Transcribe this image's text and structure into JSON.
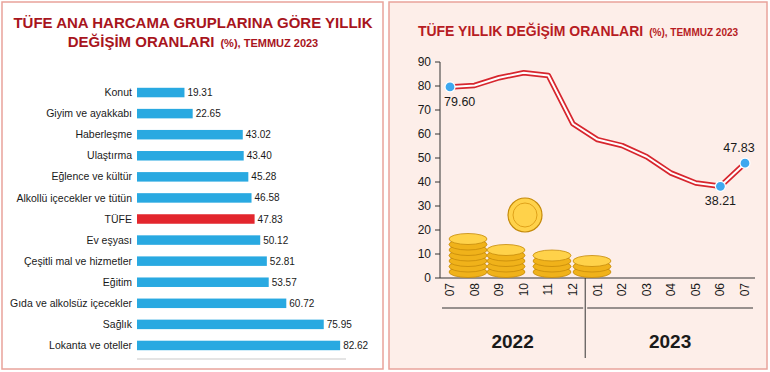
{
  "chart_data": [
    {
      "type": "bar",
      "orientation": "horizontal",
      "title": "TÜFE ANA HARCAMA GRUPLARINA GÖRE YILLIK DEĞİŞİM ORANLARI",
      "subtitle": "(%), TEMMUZ 2023",
      "categories": [
        "Konut",
        "Giyim ve ayakkabı",
        "Haberleşme",
        "Ulaştırma",
        "Eğlence ve kültür",
        "Alkollü içecekler ve tütün",
        "TÜFE",
        "Ev eşyası",
        "Çeşitli mal ve hizmetler",
        "Eğitim",
        "Gıda ve alkolsüz içecekler",
        "Sağlık",
        "Lokanta ve oteller"
      ],
      "values": [
        19.31,
        22.65,
        43.02,
        43.4,
        45.28,
        46.58,
        47.83,
        50.12,
        52.81,
        53.57,
        60.72,
        75.95,
        82.62
      ],
      "value_labels": [
        "19.31",
        "22.65",
        "43.02",
        "43.40",
        "45.28",
        "46.58",
        "47.83",
        "50.12",
        "52.81",
        "53.57",
        "60.72",
        "75.95",
        "82.62"
      ],
      "colors": [
        "#29a9e1",
        "#29a9e1",
        "#29a9e1",
        "#29a9e1",
        "#29a9e1",
        "#29a9e1",
        "#e3262d",
        "#29a9e1",
        "#29a9e1",
        "#29a9e1",
        "#29a9e1",
        "#29a9e1",
        "#29a9e1"
      ],
      "xlim": [
        0,
        85
      ],
      "data_labels": true,
      "tick_labels": "y",
      "grid": false
    },
    {
      "type": "line",
      "title": "TÜFE YILLIK DEĞİŞİM ORANLARI",
      "subtitle": "(%), TEMMUZ 2023",
      "categories": [
        "07",
        "08",
        "09",
        "10",
        "11",
        "12",
        "01",
        "02",
        "03",
        "04",
        "05",
        "06",
        "07"
      ],
      "category_groups": [
        {
          "label": "2022",
          "count": 6
        },
        {
          "label": "2023",
          "count": 7
        }
      ],
      "values": [
        79.6,
        80.21,
        83.45,
        85.51,
        84.39,
        64.27,
        57.68,
        55.18,
        50.51,
        43.68,
        39.59,
        38.21,
        47.83
      ],
      "value_labels": [
        "79.60",
        null,
        null,
        null,
        null,
        null,
        null,
        null,
        null,
        null,
        null,
        "38.21",
        "47.83"
      ],
      "color": "#d7262e",
      "marker": "circle",
      "ylim": [
        0,
        90
      ],
      "yticks": [
        0,
        10,
        20,
        30,
        40,
        50,
        60,
        70,
        80,
        90
      ],
      "data_labels": true,
      "grid": false
    }
  ]
}
